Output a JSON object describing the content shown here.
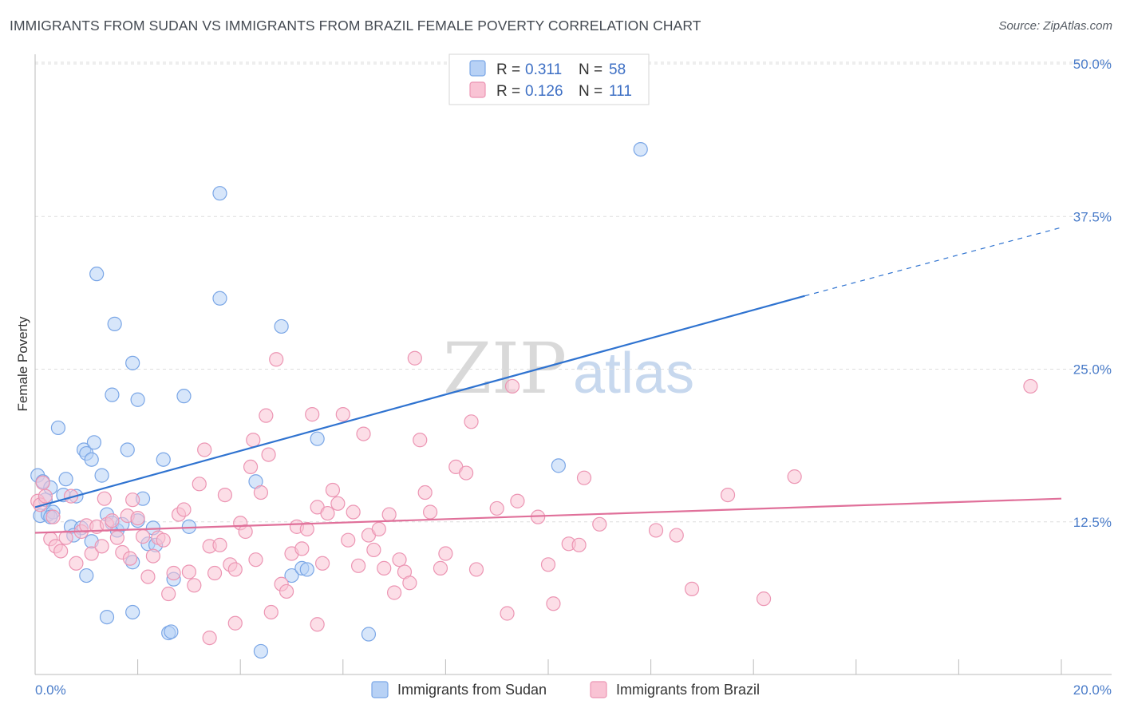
{
  "title": "IMMIGRANTS FROM SUDAN VS IMMIGRANTS FROM BRAZIL FEMALE POVERTY CORRELATION CHART",
  "source": "Source: ZipAtlas.com",
  "watermark": {
    "zip": "ZIP",
    "atlas": "atlas"
  },
  "colors": {
    "sudan_fill": "#b7d1f5",
    "sudan_stroke": "#7aa6e6",
    "sudan_line": "#2f73d0",
    "brazil_fill": "#f9c3d4",
    "brazil_stroke": "#ec95b3",
    "brazil_line": "#e0709a",
    "tick": "#4a7cc9",
    "grid": "#dddddd"
  },
  "legend": {
    "rows": [
      {
        "r_label": "R =",
        "r_value": "0.311",
        "n_label": "N =",
        "n_value": "58",
        "series": "sudan"
      },
      {
        "r_label": "R =",
        "r_value": "0.126",
        "n_label": "N =",
        "n_value": "111",
        "series": "brazil"
      }
    ]
  },
  "chart_data": {
    "type": "scatter",
    "title": "IMMIGRANTS FROM SUDAN VS IMMIGRANTS FROM BRAZIL FEMALE POVERTY CORRELATION CHART",
    "xlabel": "",
    "ylabel": "Female Poverty",
    "xlim": [
      0,
      20
    ],
    "ylim": [
      0,
      50
    ],
    "x_tick_labels": [
      "0.0%",
      "20.0%"
    ],
    "y_ticks": [
      12.5,
      25.0,
      37.5,
      50.0
    ],
    "y_tick_labels": [
      "12.5%",
      "25.0%",
      "37.5%",
      "50.0%"
    ],
    "grid": true,
    "legend_position": "top-center",
    "series": [
      {
        "name": "Immigrants from Sudan",
        "key": "sudan",
        "R": 0.311,
        "N": 58,
        "trend": {
          "x0": 0,
          "y0": 13.7,
          "x1": 15.0,
          "y1": 31.0,
          "dash_to_x": 20,
          "dash_to_y": 36.6
        },
        "points": [
          [
            0.05,
            16.3
          ],
          [
            0.1,
            13.0
          ],
          [
            0.15,
            15.8
          ],
          [
            0.2,
            14.3
          ],
          [
            0.25,
            13.1
          ],
          [
            0.3,
            15.3
          ],
          [
            0.35,
            13.3
          ],
          [
            0.45,
            20.2
          ],
          [
            0.6,
            16.0
          ],
          [
            0.7,
            12.1
          ],
          [
            0.8,
            14.6
          ],
          [
            0.9,
            12.0
          ],
          [
            0.95,
            18.4
          ],
          [
            1.0,
            18.1
          ],
          [
            1.1,
            17.6
          ],
          [
            1.15,
            19.0
          ],
          [
            1.0,
            8.1
          ],
          [
            1.1,
            10.9
          ],
          [
            1.3,
            16.3
          ],
          [
            1.4,
            4.7
          ],
          [
            1.4,
            13.1
          ],
          [
            1.5,
            12.4
          ],
          [
            1.6,
            11.8
          ],
          [
            1.5,
            22.9
          ],
          [
            1.55,
            28.7
          ],
          [
            1.8,
            18.4
          ],
          [
            1.7,
            12.3
          ],
          [
            1.9,
            25.5
          ],
          [
            1.9,
            5.1
          ],
          [
            1.9,
            9.2
          ],
          [
            2.0,
            22.5
          ],
          [
            2.1,
            14.4
          ],
          [
            2.2,
            10.7
          ],
          [
            2.3,
            12.0
          ],
          [
            2.35,
            10.6
          ],
          [
            2.5,
            17.6
          ],
          [
            2.0,
            12.6
          ],
          [
            2.6,
            3.4
          ],
          [
            2.65,
            3.5
          ],
          [
            2.7,
            7.8
          ],
          [
            2.9,
            22.8
          ],
          [
            3.0,
            12.1
          ],
          [
            3.6,
            30.8
          ],
          [
            3.6,
            39.4
          ],
          [
            4.3,
            15.8
          ],
          [
            4.4,
            1.9
          ],
          [
            4.8,
            28.5
          ],
          [
            5.0,
            8.1
          ],
          [
            5.2,
            8.7
          ],
          [
            5.5,
            19.3
          ],
          [
            5.3,
            8.6
          ],
          [
            6.5,
            3.3
          ],
          [
            11.8,
            43.0
          ],
          [
            10.2,
            17.1
          ],
          [
            1.2,
            32.8
          ],
          [
            0.55,
            14.7
          ],
          [
            0.75,
            11.4
          ],
          [
            0.3,
            12.9
          ]
        ]
      },
      {
        "name": "Immigrants from Brazil",
        "key": "brazil",
        "R": 0.126,
        "N": 111,
        "trend": {
          "x0": 0,
          "y0": 11.6,
          "x1": 20,
          "y1": 14.4
        },
        "points": [
          [
            0.05,
            14.2
          ],
          [
            0.1,
            13.9
          ],
          [
            0.15,
            15.7
          ],
          [
            0.2,
            14.6
          ],
          [
            0.3,
            11.1
          ],
          [
            0.35,
            12.9
          ],
          [
            0.4,
            10.5
          ],
          [
            0.5,
            10.1
          ],
          [
            0.6,
            11.2
          ],
          [
            0.7,
            14.6
          ],
          [
            0.8,
            9.1
          ],
          [
            0.9,
            11.7
          ],
          [
            1.0,
            12.2
          ],
          [
            1.1,
            9.9
          ],
          [
            1.2,
            12.1
          ],
          [
            1.3,
            10.5
          ],
          [
            1.35,
            14.4
          ],
          [
            1.4,
            12.3
          ],
          [
            1.5,
            12.6
          ],
          [
            1.6,
            11.2
          ],
          [
            1.7,
            10.0
          ],
          [
            1.8,
            13.0
          ],
          [
            1.85,
            9.5
          ],
          [
            1.9,
            14.3
          ],
          [
            2.0,
            12.8
          ],
          [
            2.1,
            11.3
          ],
          [
            2.2,
            8.0
          ],
          [
            2.3,
            9.7
          ],
          [
            2.4,
            11.2
          ],
          [
            2.5,
            11.0
          ],
          [
            2.6,
            6.6
          ],
          [
            2.7,
            8.3
          ],
          [
            2.8,
            13.1
          ],
          [
            2.9,
            13.5
          ],
          [
            3.0,
            8.4
          ],
          [
            3.1,
            7.3
          ],
          [
            3.2,
            15.6
          ],
          [
            3.3,
            18.4
          ],
          [
            3.4,
            10.5
          ],
          [
            3.5,
            8.3
          ],
          [
            3.6,
            10.6
          ],
          [
            3.7,
            14.7
          ],
          [
            3.8,
            9.0
          ],
          [
            3.9,
            8.6
          ],
          [
            4.0,
            12.4
          ],
          [
            4.1,
            11.7
          ],
          [
            4.2,
            17.0
          ],
          [
            4.25,
            19.2
          ],
          [
            4.3,
            9.4
          ],
          [
            4.4,
            14.9
          ],
          [
            4.5,
            21.2
          ],
          [
            4.55,
            18.0
          ],
          [
            4.7,
            25.8
          ],
          [
            4.8,
            7.4
          ],
          [
            4.9,
            6.8
          ],
          [
            5.0,
            9.9
          ],
          [
            5.1,
            12.1
          ],
          [
            5.2,
            10.3
          ],
          [
            5.3,
            11.9
          ],
          [
            5.4,
            21.3
          ],
          [
            5.5,
            13.7
          ],
          [
            5.6,
            9.1
          ],
          [
            5.7,
            13.2
          ],
          [
            5.8,
            15.1
          ],
          [
            5.9,
            14.0
          ],
          [
            6.0,
            21.3
          ],
          [
            6.1,
            11.0
          ],
          [
            6.2,
            13.3
          ],
          [
            6.3,
            8.9
          ],
          [
            6.4,
            19.7
          ],
          [
            6.5,
            11.4
          ],
          [
            6.6,
            10.2
          ],
          [
            6.7,
            11.9
          ],
          [
            6.8,
            8.7
          ],
          [
            6.9,
            13.1
          ],
          [
            7.0,
            6.7
          ],
          [
            7.1,
            9.4
          ],
          [
            7.2,
            8.4
          ],
          [
            7.3,
            7.5
          ],
          [
            7.4,
            25.9
          ],
          [
            7.5,
            19.2
          ],
          [
            7.6,
            14.9
          ],
          [
            7.7,
            13.3
          ],
          [
            7.9,
            8.7
          ],
          [
            8.0,
            9.9
          ],
          [
            8.2,
            17.0
          ],
          [
            8.4,
            16.5
          ],
          [
            8.5,
            20.7
          ],
          [
            8.6,
            8.6
          ],
          [
            9.0,
            13.6
          ],
          [
            9.2,
            5.0
          ],
          [
            9.3,
            23.6
          ],
          [
            9.4,
            14.2
          ],
          [
            9.8,
            12.9
          ],
          [
            10.0,
            9.0
          ],
          [
            10.1,
            5.8
          ],
          [
            10.4,
            10.7
          ],
          [
            10.6,
            10.6
          ],
          [
            10.7,
            16.1
          ],
          [
            11.0,
            12.3
          ],
          [
            12.1,
            11.8
          ],
          [
            12.5,
            11.4
          ],
          [
            12.8,
            7.0
          ],
          [
            13.5,
            14.7
          ],
          [
            14.2,
            6.2
          ],
          [
            14.8,
            16.2
          ],
          [
            19.4,
            23.6
          ],
          [
            3.9,
            4.2
          ],
          [
            5.5,
            4.1
          ],
          [
            3.4,
            3.0
          ],
          [
            4.6,
            5.1
          ]
        ]
      }
    ]
  },
  "bottom_legend": [
    {
      "label": "Immigrants from Sudan",
      "series": "sudan"
    },
    {
      "label": "Immigrants from Brazil",
      "series": "brazil"
    }
  ]
}
